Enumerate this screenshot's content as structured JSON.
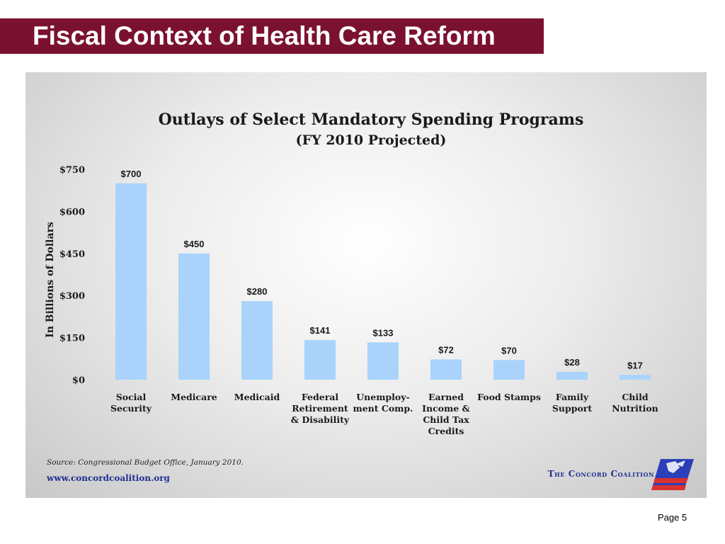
{
  "slide": {
    "title": "Fiscal Context of Health Care Reform",
    "page": "Page 5",
    "accent_color": "#7b1131"
  },
  "chart_data": {
    "type": "bar",
    "title": "Outlays of Select Mandatory Spending Programs",
    "subtitle": "(FY 2010 Projected)",
    "ylabel": "In Billions of Dollars",
    "xlabel": "",
    "ylim": [
      0,
      750
    ],
    "yticks": [
      {
        "value": 0,
        "label": "$0"
      },
      {
        "value": 150,
        "label": "$150"
      },
      {
        "value": 300,
        "label": "$300"
      },
      {
        "value": 450,
        "label": "$450"
      },
      {
        "value": 600,
        "label": "$600"
      },
      {
        "value": 750,
        "label": "$750"
      }
    ],
    "categories": [
      [
        "Social",
        "Security"
      ],
      [
        "Medicare"
      ],
      [
        "Medicaid"
      ],
      [
        "Federal",
        "Retirement",
        "& Disability"
      ],
      [
        "Unemploy-",
        "ment Comp."
      ],
      [
        "Earned",
        "Income &",
        "Child Tax",
        "Credits"
      ],
      [
        "Food Stamps"
      ],
      [
        "Family",
        "Support"
      ],
      [
        "Child",
        "Nutrition"
      ]
    ],
    "values": [
      700,
      450,
      280,
      141,
      133,
      72,
      70,
      28,
      17
    ],
    "data_labels": [
      "$700",
      "$450",
      "$280",
      "$141",
      "$133",
      "$72",
      "$70",
      "$28",
      "$17"
    ],
    "bar_color": "#a9d3fb",
    "grid": false,
    "legend": "none",
    "source": "Source: Congressional Budget Office, January 2010.",
    "website": "www.concordcoalition.org",
    "logo_text": "The Concord Coalition"
  }
}
